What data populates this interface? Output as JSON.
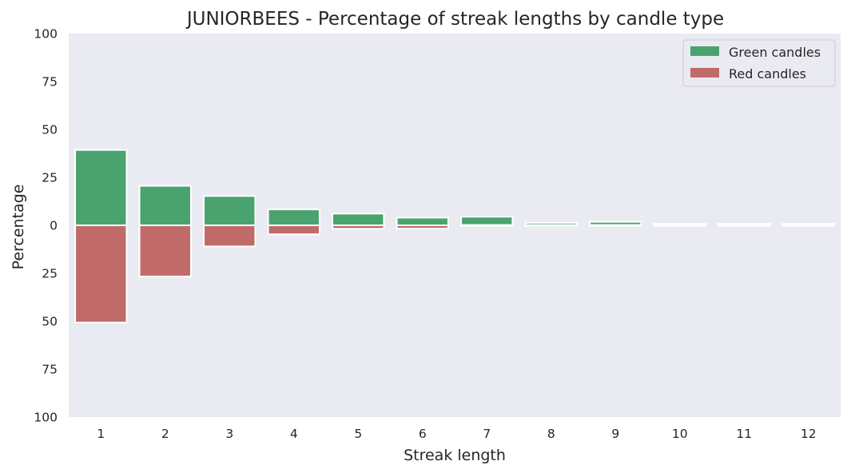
{
  "chart_data": {
    "type": "bar",
    "title": "JUNIORBEES - Percentage of streak lengths by candle type",
    "xlabel": "Streak length",
    "ylabel": "Percentage",
    "categories": [
      "1",
      "2",
      "3",
      "4",
      "5",
      "6",
      "7",
      "8",
      "9",
      "10",
      "11",
      "12"
    ],
    "ylim": [
      -100,
      100
    ],
    "yticks": [
      100,
      75,
      50,
      25,
      0,
      -25,
      -50,
      -75,
      -100
    ],
    "ytick_labels": [
      "100",
      "75",
      "50",
      "25",
      "0",
      "25",
      "50",
      "75",
      "100"
    ],
    "series": [
      {
        "name": "Green candles",
        "color": "#4aa36f",
        "values": [
          39.3,
          20.6,
          15.3,
          8.3,
          6.1,
          4.0,
          4.5,
          1.3,
          1.8,
          0.8,
          0.8,
          0.8
        ]
      },
      {
        "name": "Red candles",
        "color": "#c06a6a",
        "values": [
          -50.7,
          -26.7,
          -11.0,
          -4.7,
          -1.8,
          -1.7,
          0,
          0,
          0,
          0,
          0,
          0
        ]
      }
    ],
    "legend_position": "top-right",
    "grid": false,
    "background": "#eaeaf2"
  }
}
